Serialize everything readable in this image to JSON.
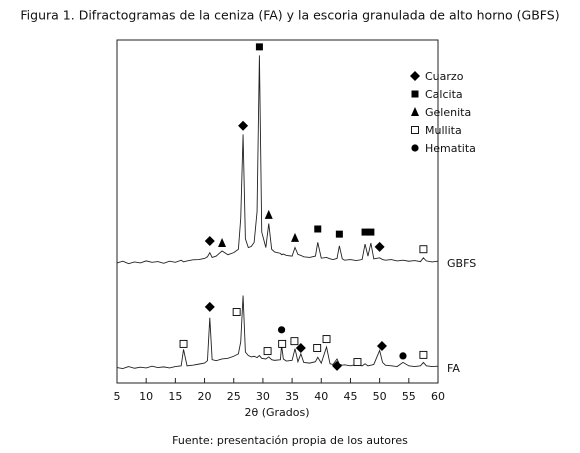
{
  "chart_data": {
    "type": "line",
    "title": "Figura 1. Difractogramas de la ceniza (FA) y la escoria granulada de alto horno (GBFS)",
    "xlabel": "2θ (Grados)",
    "source": "Fuente: presentación propia de los autores",
    "xlim": [
      5,
      60
    ],
    "xticks": [
      5,
      10,
      15,
      20,
      25,
      30,
      35,
      40,
      45,
      50,
      55,
      60
    ],
    "ylim": [
      0,
      100
    ],
    "color": "#222222",
    "x": [
      5,
      6,
      7,
      8,
      9,
      10,
      11,
      12,
      13,
      14,
      15,
      16,
      16.4,
      17,
      18,
      19,
      20,
      20.5,
      20.9,
      21.3,
      22,
      23,
      24,
      25,
      25.8,
      26.2,
      26.6,
      27,
      27.5,
      28,
      28.5,
      29,
      29.4,
      29.8,
      30.5,
      31,
      31.5,
      32,
      33,
      33.2,
      33.5,
      34,
      35,
      35.5,
      36,
      36.5,
      37,
      38,
      39,
      39.4,
      40,
      40.9,
      41.5,
      42,
      42.7,
      43.1,
      43.6,
      44,
      45,
      46,
      47,
      47.5,
      48,
      48.5,
      49,
      50,
      50.5,
      51,
      52,
      53,
      54,
      55,
      56,
      57,
      57.5,
      58,
      59,
      60
    ],
    "series": [
      {
        "name": "GBFS",
        "values": [
          35,
          35.5,
          34.8,
          35.3,
          35,
          35.6,
          35.2,
          35.4,
          34.9,
          35.5,
          35.2,
          35.8,
          35.3,
          35.6,
          35.9,
          36,
          36.3,
          36.8,
          38,
          36.6,
          37,
          38.5,
          37.4,
          38,
          39,
          48,
          72.5,
          42,
          39.5,
          39.8,
          41,
          50,
          95.5,
          44,
          39.5,
          46.5,
          39,
          38.2,
          37.8,
          37.4,
          37.6,
          37.2,
          37,
          39.5,
          37.5,
          37.2,
          36.8,
          36.6,
          37,
          41,
          36.4,
          36.6,
          36.2,
          36,
          36.3,
          40,
          36.2,
          35.8,
          36,
          35.7,
          36,
          40.5,
          37,
          40.8,
          36.2,
          36.5,
          36,
          35.8,
          36,
          35.6,
          35.8,
          35.5,
          35.7,
          35.4,
          36.5,
          35.6,
          35.3,
          35.5
        ]
      },
      {
        "name": "FA",
        "values": [
          4.5,
          4.2,
          4.8,
          4.3,
          4.6,
          4.4,
          4.9,
          4.5,
          4.7,
          4.4,
          4.8,
          5,
          9.8,
          5,
          5.2,
          5.5,
          5.8,
          6.5,
          19,
          6.8,
          6.5,
          7,
          7.2,
          7.8,
          8.5,
          12,
          25.5,
          9,
          8,
          7.6,
          7.8,
          7.4,
          8,
          7.2,
          7,
          7.6,
          6.8,
          6.6,
          6.8,
          11,
          7,
          6.4,
          6.6,
          10,
          6.2,
          8.5,
          6,
          5.8,
          6.2,
          7.5,
          5.8,
          10.5,
          5.6,
          5.4,
          7,
          5.5,
          5.2,
          5.3,
          5,
          5.4,
          5,
          5.6,
          5,
          5.2,
          5.4,
          9.5,
          6,
          5.2,
          5,
          4.8,
          6,
          5,
          4.8,
          5,
          6,
          5,
          4.8,
          4.9
        ]
      }
    ],
    "phases": [
      {
        "name": "Cuarzo",
        "symbol": "diamond"
      },
      {
        "name": "Calcita",
        "symbol": "square"
      },
      {
        "name": "Gelenita",
        "symbol": "triangle"
      },
      {
        "name": "Mullita",
        "symbol": "open-square"
      },
      {
        "name": "Hematita",
        "symbol": "circle"
      }
    ],
    "markers": [
      {
        "symbol": "diamond",
        "x": 20.9,
        "y": 41.4
      },
      {
        "symbol": "triangle",
        "x": 23,
        "y": 40.8
      },
      {
        "symbol": "diamond",
        "x": 26.6,
        "y": 75
      },
      {
        "symbol": "square",
        "x": 29.4,
        "y": 98
      },
      {
        "symbol": "triangle",
        "x": 31,
        "y": 49
      },
      {
        "symbol": "triangle",
        "x": 35.5,
        "y": 42.3
      },
      {
        "symbol": "square",
        "x": 39.4,
        "y": 44.9
      },
      {
        "symbol": "square",
        "x": 43.1,
        "y": 43.4
      },
      {
        "symbol": "square",
        "x": 47.5,
        "y": 44
      },
      {
        "symbol": "square",
        "x": 48.5,
        "y": 44
      },
      {
        "symbol": "diamond",
        "x": 50,
        "y": 39.7
      },
      {
        "symbol": "open-square",
        "x": 57.5,
        "y": 39
      },
      {
        "symbol": "open-square",
        "x": 16.4,
        "y": 11.4
      },
      {
        "symbol": "diamond",
        "x": 20.9,
        "y": 22.2
      },
      {
        "symbol": "open-square",
        "x": 25.5,
        "y": 20.7
      },
      {
        "symbol": "circle",
        "x": 33.2,
        "y": 15.5
      },
      {
        "symbol": "open-square",
        "x": 30.8,
        "y": 9.3
      },
      {
        "symbol": "open-square",
        "x": 33.3,
        "y": 11.4
      },
      {
        "symbol": "open-square",
        "x": 35.4,
        "y": 12.2
      },
      {
        "symbol": "diamond",
        "x": 36.5,
        "y": 10.2
      },
      {
        "symbol": "open-square",
        "x": 39.3,
        "y": 10.2
      },
      {
        "symbol": "open-square",
        "x": 40.9,
        "y": 12.8
      },
      {
        "symbol": "diamond",
        "x": 42.7,
        "y": 5
      },
      {
        "symbol": "open-square",
        "x": 46.2,
        "y": 6.1
      },
      {
        "symbol": "diamond",
        "x": 50.4,
        "y": 10.8
      },
      {
        "symbol": "circle",
        "x": 54,
        "y": 7.9
      },
      {
        "symbol": "open-square",
        "x": 57.5,
        "y": 8.2
      }
    ]
  }
}
